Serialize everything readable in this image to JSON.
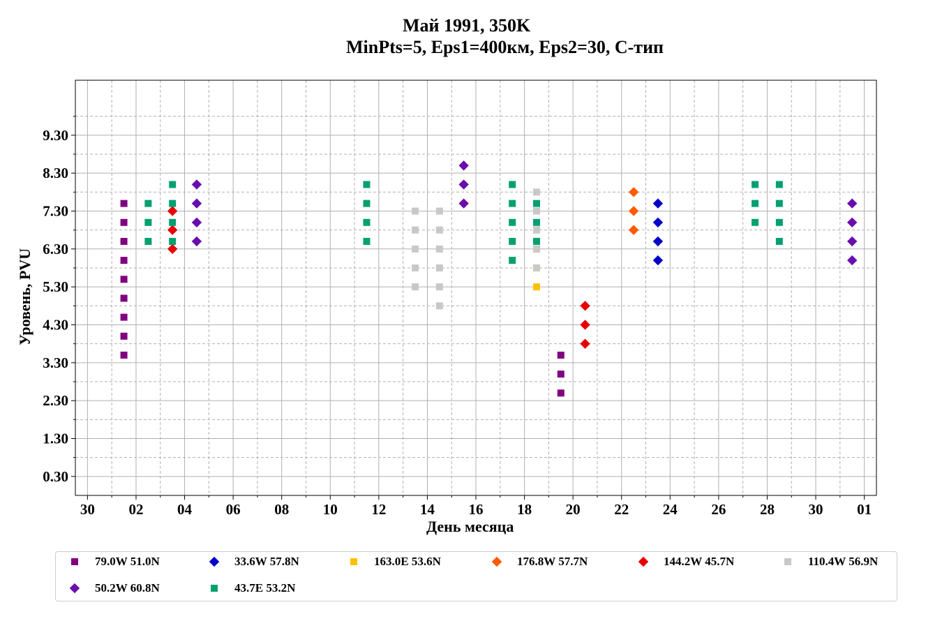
{
  "chart_data": {
    "type": "scatter",
    "title": "Май 1991, 350K",
    "subtitle": "MinPts=5, Eps1=400км, Eps2=30, С-тип",
    "xlabel": "День месяца",
    "ylabel": "Уровень, PVU",
    "x_ticks": [
      "30",
      "02",
      "04",
      "06",
      "08",
      "10",
      "12",
      "14",
      "16",
      "18",
      "20",
      "22",
      "24",
      "26",
      "28",
      "30",
      "01"
    ],
    "y_ticks": [
      "0.30",
      "1.30",
      "2.30",
      "3.30",
      "4.30",
      "5.30",
      "6.30",
      "7.30",
      "8.30",
      "9.30"
    ],
    "ylim": [
      -0.2,
      10.75
    ],
    "grid": true,
    "legend_placement": "bottom",
    "series": [
      {
        "name": "79.0W 51.0N",
        "marker": "square",
        "color": "#800080",
        "points": [
          [
            "1991-05-01",
            3.5
          ],
          [
            "1991-05-01",
            4.0
          ],
          [
            "1991-05-01",
            4.5
          ],
          [
            "1991-05-01",
            5.0
          ],
          [
            "1991-05-01",
            5.5
          ],
          [
            "1991-05-01",
            6.0
          ],
          [
            "1991-05-01",
            6.5
          ],
          [
            "1991-05-01",
            7.0
          ],
          [
            "1991-05-01",
            7.5
          ],
          [
            "1991-05-19",
            2.5
          ],
          [
            "1991-05-19",
            3.0
          ],
          [
            "1991-05-19",
            3.5
          ]
        ]
      },
      {
        "name": "33.6W 57.8N",
        "marker": "diamond",
        "color": "#0000c8",
        "points": [
          [
            "1991-05-23",
            6.0
          ],
          [
            "1991-05-23",
            6.5
          ],
          [
            "1991-05-23",
            7.0
          ],
          [
            "1991-05-23",
            7.5
          ]
        ]
      },
      {
        "name": "163.0E 53.6N",
        "marker": "square",
        "color": "#ffc000",
        "points": [
          [
            "1991-05-18",
            5.3
          ],
          [
            "1991-05-18",
            5.8
          ],
          [
            "1991-05-18",
            6.3
          ],
          [
            "1991-05-18",
            6.8
          ],
          [
            "1991-05-18",
            7.3
          ]
        ]
      },
      {
        "name": "176.8W 57.7N",
        "marker": "diamond",
        "color": "#ff5a00",
        "points": [
          [
            "1991-05-22",
            6.8
          ],
          [
            "1991-05-22",
            7.3
          ],
          [
            "1991-05-22",
            7.8
          ]
        ]
      },
      {
        "name": "144.2W 45.7N",
        "marker": "diamond",
        "color": "#e60000",
        "points": [
          [
            "1991-05-03",
            6.3
          ],
          [
            "1991-05-03",
            6.8
          ],
          [
            "1991-05-03",
            7.3
          ],
          [
            "1991-05-20",
            3.8
          ],
          [
            "1991-05-20",
            4.3
          ],
          [
            "1991-05-20",
            4.8
          ]
        ]
      },
      {
        "name": "110.4W 56.9N",
        "marker": "square",
        "color": "#c8c8c8",
        "points": [
          [
            "1991-05-13",
            5.3
          ],
          [
            "1991-05-13",
            5.8
          ],
          [
            "1991-05-13",
            6.3
          ],
          [
            "1991-05-13",
            6.8
          ],
          [
            "1991-05-13",
            7.3
          ],
          [
            "1991-05-14",
            4.8
          ],
          [
            "1991-05-14",
            5.3
          ],
          [
            "1991-05-14",
            5.8
          ],
          [
            "1991-05-14",
            6.3
          ],
          [
            "1991-05-14",
            6.8
          ],
          [
            "1991-05-14",
            7.3
          ],
          [
            "1991-05-18",
            5.8
          ],
          [
            "1991-05-18",
            6.3
          ],
          [
            "1991-05-18",
            6.8
          ],
          [
            "1991-05-18",
            7.3
          ],
          [
            "1991-05-18",
            7.8
          ]
        ]
      },
      {
        "name": "50.2W 60.8N",
        "marker": "diamond",
        "color": "#6a0dad",
        "points": [
          [
            "1991-05-04",
            6.5
          ],
          [
            "1991-05-04",
            7.0
          ],
          [
            "1991-05-04",
            7.5
          ],
          [
            "1991-05-04",
            8.0
          ],
          [
            "1991-05-15",
            7.5
          ],
          [
            "1991-05-15",
            8.0
          ],
          [
            "1991-05-15",
            8.5
          ],
          [
            "1991-05-31",
            6.0
          ],
          [
            "1991-05-31",
            6.5
          ],
          [
            "1991-05-31",
            7.0
          ],
          [
            "1991-05-31",
            7.5
          ]
        ]
      },
      {
        "name": "43.7E 53.2N",
        "marker": "square",
        "color": "#00a070",
        "points": [
          [
            "1991-05-02",
            6.5
          ],
          [
            "1991-05-02",
            7.0
          ],
          [
            "1991-05-02",
            7.5
          ],
          [
            "1991-05-03",
            6.5
          ],
          [
            "1991-05-03",
            7.0
          ],
          [
            "1991-05-03",
            7.5
          ],
          [
            "1991-05-03",
            8.0
          ],
          [
            "1991-05-11",
            6.5
          ],
          [
            "1991-05-11",
            7.0
          ],
          [
            "1991-05-11",
            7.5
          ],
          [
            "1991-05-11",
            8.0
          ],
          [
            "1991-05-17",
            6.0
          ],
          [
            "1991-05-17",
            6.5
          ],
          [
            "1991-05-17",
            7.0
          ],
          [
            "1991-05-17",
            7.5
          ],
          [
            "1991-05-17",
            8.0
          ],
          [
            "1991-05-18",
            6.5
          ],
          [
            "1991-05-18",
            7.0
          ],
          [
            "1991-05-18",
            7.5
          ],
          [
            "1991-05-27",
            7.0
          ],
          [
            "1991-05-27",
            7.5
          ],
          [
            "1991-05-27",
            8.0
          ],
          [
            "1991-05-28",
            6.5
          ],
          [
            "1991-05-28",
            7.0
          ],
          [
            "1991-05-28",
            7.5
          ],
          [
            "1991-05-28",
            8.0
          ]
        ]
      }
    ]
  }
}
